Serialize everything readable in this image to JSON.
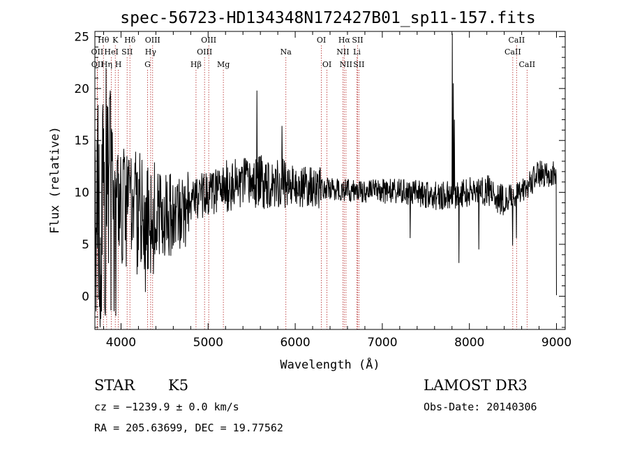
{
  "title": "spec-56723-HD134348N172427B01_sp11-157.fits",
  "footer": {
    "object_class": "STAR",
    "subclass": "K5",
    "survey": "LAMOST DR3",
    "cz": "cz = −1239.9 ± 0.0 km/s",
    "obs_date": "Obs-Date: 20140306",
    "coords": "RA = 205.63699, DEC =  19.77562"
  },
  "chart_data": {
    "type": "line",
    "title": "spec-56723-HD134348N172427B01_sp11-157.fits",
    "xlabel": "Wavelength (Å)",
    "ylabel": "Flux (relative)",
    "xlim": [
      3700,
      9100
    ],
    "ylim": [
      -3.2,
      25.5
    ],
    "xticks": [
      4000,
      5000,
      6000,
      7000,
      8000,
      9000
    ],
    "yticks": [
      0,
      5,
      10,
      15,
      20,
      25
    ],
    "grid": false,
    "line_color": "#000000",
    "marker_color": "#b22222",
    "spectral_lines": [
      {
        "label": "Hθ",
        "wavelength": 3798,
        "row": 1
      },
      {
        "label": "Hη",
        "wavelength": 3835,
        "row": 3
      },
      {
        "label": "OII",
        "wavelength": 3727,
        "row": 2
      },
      {
        "label": "OII",
        "wavelength": 3729,
        "row": 3
      },
      {
        "label": "HeI",
        "wavelength": 3889,
        "row": 2
      },
      {
        "label": "K",
        "wavelength": 3934,
        "row": 1
      },
      {
        "label": "H",
        "wavelength": 3969,
        "row": 3
      },
      {
        "label": "SII",
        "wavelength": 4070,
        "row": 2
      },
      {
        "label": "Hδ",
        "wavelength": 4102,
        "row": 1
      },
      {
        "label": "G",
        "wavelength": 4305,
        "row": 3
      },
      {
        "label": "OIII",
        "wavelength": 4363,
        "row": 1
      },
      {
        "label": "Hγ",
        "wavelength": 4340,
        "row": 2
      },
      {
        "label": "Hβ",
        "wavelength": 4861,
        "row": 3
      },
      {
        "label": "OIII",
        "wavelength": 4959,
        "row": 2
      },
      {
        "label": "OIII",
        "wavelength": 5007,
        "row": 1
      },
      {
        "label": "Mg",
        "wavelength": 5175,
        "row": 3
      },
      {
        "label": "Na",
        "wavelength": 5893,
        "row": 2
      },
      {
        "label": "OI",
        "wavelength": 6300,
        "row": 1
      },
      {
        "label": "OI",
        "wavelength": 6364,
        "row": 3
      },
      {
        "label": "NII",
        "wavelength": 6548,
        "row": 2
      },
      {
        "label": "Hα",
        "wavelength": 6563,
        "row": 1
      },
      {
        "label": "NII",
        "wavelength": 6583,
        "row": 3
      },
      {
        "label": "SII",
        "wavelength": 6716,
        "row": 1
      },
      {
        "label": "Li",
        "wavelength": 6708,
        "row": 2
      },
      {
        "label": "SII",
        "wavelength": 6731,
        "row": 3
      },
      {
        "label": "CaII",
        "wavelength": 8498,
        "row": 2
      },
      {
        "label": "CaII",
        "wavelength": 8542,
        "row": 1
      },
      {
        "label": "CaII",
        "wavelength": 8662,
        "row": 3
      }
    ],
    "flux_knots": [
      [
        3700,
        8.0
      ],
      [
        3800,
        8.5
      ],
      [
        3900,
        9.0
      ],
      [
        4000,
        9.0
      ],
      [
        4200,
        8.0
      ],
      [
        4400,
        7.8
      ],
      [
        4600,
        7.8
      ],
      [
        4750,
        8.0
      ],
      [
        4800,
        9.5
      ],
      [
        5000,
        9.8
      ],
      [
        5200,
        10.5
      ],
      [
        5400,
        10.8
      ],
      [
        5600,
        11.0
      ],
      [
        5800,
        11.0
      ],
      [
        6000,
        10.5
      ],
      [
        6200,
        10.5
      ],
      [
        6400,
        10.3
      ],
      [
        6600,
        10.2
      ],
      [
        6800,
        10.1
      ],
      [
        7000,
        10.2
      ],
      [
        7200,
        10.0
      ],
      [
        7400,
        9.9
      ],
      [
        7600,
        9.7
      ],
      [
        7800,
        9.7
      ],
      [
        8000,
        10.0
      ],
      [
        8200,
        10.3
      ],
      [
        8400,
        9.2
      ],
      [
        8600,
        10.0
      ],
      [
        8800,
        11.8
      ],
      [
        9000,
        11.8
      ]
    ],
    "noise_segments": [
      [
        3700,
        3950,
        11.0
      ],
      [
        3950,
        4400,
        6.0
      ],
      [
        4400,
        4780,
        4.0
      ],
      [
        4780,
        5200,
        2.2
      ],
      [
        5200,
        5900,
        2.6
      ],
      [
        5900,
        6300,
        2.0
      ],
      [
        6300,
        7000,
        1.1
      ],
      [
        7000,
        7600,
        1.3
      ],
      [
        7600,
        8000,
        1.4
      ],
      [
        8000,
        8400,
        1.6
      ],
      [
        8400,
        9000,
        1.3
      ]
    ],
    "features": [
      {
        "wavelength": 7805,
        "flux": 25.3
      },
      {
        "wavelength": 7818,
        "flux": 20.5
      },
      {
        "wavelength": 7828,
        "flux": 17.0
      },
      {
        "wavelength": 5560,
        "flux": 19.8
      },
      {
        "wavelength": 5850,
        "flux": 16.4
      },
      {
        "wavelength": 7320,
        "flux": 5.6
      },
      {
        "wavelength": 7880,
        "flux": 3.2
      },
      {
        "wavelength": 8110,
        "flux": 4.5
      },
      {
        "wavelength": 8498,
        "flux": 4.9
      },
      {
        "wavelength": 8542,
        "flux": 5.6
      },
      {
        "wavelength": 4280,
        "flux": 0.4
      },
      {
        "wavelength": 3760,
        "flux": -3.0
      },
      {
        "wavelength": 3830,
        "flux": 22.0
      },
      {
        "wavelength": 9000,
        "flux": 0.1
      }
    ]
  }
}
